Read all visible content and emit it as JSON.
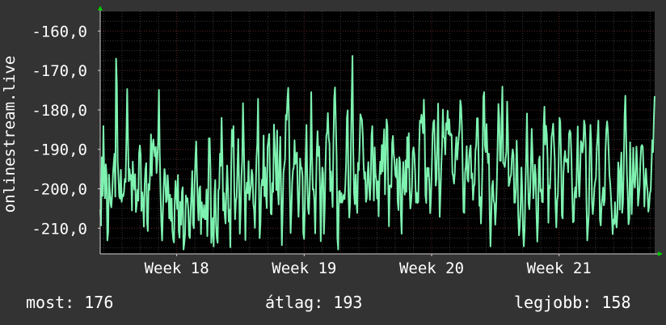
{
  "chart_data": {
    "type": "line",
    "ylabel": "onlinestream.live",
    "ylim": [
      -216.5,
      -155.0
    ],
    "y_ticks": [
      -160,
      -170,
      -180,
      -190,
      -200,
      -210
    ],
    "y_tick_labels": [
      "-160,0",
      "-170,0",
      "-180,0",
      "-190,0",
      "-200,0",
      "-210,0"
    ],
    "x_tick_labels": [
      "Week 18",
      "Week 19",
      "Week 20",
      "Week 21"
    ],
    "x_tick_positions": [
      18,
      19,
      20,
      21
    ],
    "xlim": [
      17.4,
      21.75
    ],
    "grid": true,
    "colors": {
      "line": "#7ef2b0",
      "background": "#333333",
      "plot_bg": "#000000",
      "grid_minor": "#3a3a3a",
      "grid_major": "#5a1f1f",
      "axis": "#d0d0d0",
      "arrow": "#00cc00"
    },
    "series": [
      {
        "values": [
          -205.3,
          -209.3,
          -192.0,
          -201.8,
          -184.1,
          -196.6,
          -202.4,
          -193.8,
          -196.4,
          -213.1,
          -211.0,
          -196.4,
          -200.3,
          -203.6,
          -204.7,
          -201.5,
          -196.5,
          -193.6,
          -191.1,
          -202.0,
          -167.0,
          -173.8,
          -193.1,
          -197.3,
          -201.9,
          -202.5,
          -195.2,
          -203.3,
          -201.5,
          -201.9,
          -200.7,
          -197.5,
          -198.3,
          -187.1,
          -174.7,
          -187.4,
          -198.1,
          -195.0,
          -197.7,
          -196.5,
          -205.5,
          -193.1,
          -197.8,
          -200.2,
          -196.3,
          -205.9,
          -204.0,
          -200.3,
          -203.0,
          -191.0,
          -189.0,
          -191.4,
          -205.6,
          -200.9,
          -203.2,
          -209.6,
          -199.0,
          -195.1,
          -193.5,
          -208.2,
          -210.7,
          -198.8,
          -200.3,
          -195.3,
          -186.2,
          -196.7,
          -189.1,
          -187.5,
          -190.0,
          -191.8,
          -189.4,
          -196.0,
          -192.4,
          -187.9,
          -174.9,
          -190.6,
          -200.6,
          -208.5,
          -213.1,
          -205.8,
          -199.7,
          -195.0,
          -196.7,
          -203.4,
          -202.8,
          -196.6,
          -200.0,
          -207.5,
          -201.5,
          -208.1,
          -202.5,
          -210.6,
          -212.8,
          -213.6,
          -203.3,
          -198.0,
          -201.5,
          -205.1,
          -196.5,
          -210.7,
          -212.4,
          -203.3,
          -209.1,
          -200.8,
          -199.6,
          -215.4,
          -213.8,
          -211.4,
          -201.7,
          -203.3,
          -202.4,
          -205.2,
          -211.8,
          -212.5,
          -205.6,
          -201.3,
          -195.5,
          -208.9,
          -210.0,
          -199.0,
          -192.4,
          -188.0,
          -196.9,
          -204.1,
          -208.0,
          -200.0,
          -199.4,
          -211.5,
          -203.4,
          -206.7,
          -207.3,
          -204.1,
          -207.7,
          -207.7,
          -200.2,
          -212.0,
          -204.9,
          -187.2,
          -187.2,
          -195.2,
          -213.7,
          -210.7,
          -207.4,
          -214.6,
          -201.9,
          -197.8,
          -209.1,
          -212.6,
          -213.7,
          -200.3,
          -199.9,
          -191.1,
          -194.2,
          -182.0,
          -191.4,
          -205.5,
          -201.1,
          -206.7,
          -208.8,
          -200.6,
          -194.1,
          -199.7,
          -208.3,
          -205.3,
          -214.8,
          -196.6,
          -185.0,
          -189.2,
          -184.1,
          -200.3,
          -207.7,
          -203.1,
          -202.2,
          -194.7,
          -187.4,
          -198.2,
          -211.4,
          -205.6,
          -197.3,
          -192.8,
          -178.3,
          -188.1,
          -199.9,
          -213.0,
          -201.1,
          -198.4,
          -201.1,
          -193.0,
          -202.8,
          -201.0,
          -199.1,
          -195.2,
          -196.4,
          -203.7,
          -205.4,
          -209.9,
          -200.6,
          -192.1,
          -188.6,
          -177.2,
          -195.5,
          -212.5,
          -208.9,
          -199.9,
          -197.7,
          -199.1,
          -186.5,
          -201.9,
          -194.6,
          -201.7,
          -204.9,
          -189.3,
          -187.9,
          -186.1,
          -196.8,
          -206.2,
          -206.5,
          -198.5,
          -200.8,
          -183.7,
          -188.8,
          -193.4,
          -200.3,
          -185.2,
          -200.6,
          -204.0,
          -192.9,
          -186.8,
          -200.9,
          -214.3,
          -205.6,
          -196.0,
          -194.1,
          -192.5,
          -181.3,
          -182.5,
          -177.5,
          -174.4,
          -182.5,
          -200.5,
          -211.2,
          -205.6,
          -198.4,
          -195.3,
          -194.5,
          -187.7,
          -193.7,
          -191.8,
          -190.8,
          -201.3,
          -207.1,
          -201.5,
          -192.3,
          -194.8,
          -194.7,
          -196.8,
          -211.3,
          -212.7,
          -204.3,
          -192.0,
          -183.8,
          -197.2,
          -204.9,
          -206.4,
          -200.5,
          -193.5,
          -175.5,
          -191.0,
          -200.2,
          -200.1,
          -203.3,
          -211.3,
          -200.8,
          -190.6,
          -185.4,
          -191.7,
          -189.3,
          -199.0,
          -213.3,
          -200.8,
          -194.6,
          -196.2,
          -211.4,
          -205.1,
          -194.1,
          -186.6,
          -185.6,
          -180.8,
          -187.0,
          -188.6,
          -200.6,
          -195.6,
          -199.9,
          -204.6,
          -188.5,
          -176.9,
          -174.3,
          -183.1,
          -191.8,
          -212.6,
          -215.4,
          -200.7,
          -200.5,
          -203.5,
          -201.1,
          -203.5,
          -202.6,
          -201.5,
          -202.6,
          -199.2,
          -193.4,
          -182.1,
          -180.1,
          -201.6,
          -207.3,
          -203.6,
          -190.1,
          -177.3,
          -166.3,
          -190.2,
          -201.2,
          -203.9,
          -196.4,
          -203.2,
          -206.1,
          -193.4,
          -195.3,
          -189.6,
          -181.1,
          -181.9,
          -182.5,
          -186.4,
          -193.8,
          -197.5,
          -195.8,
          -203.3,
          -202.4,
          -196.9,
          -193.2,
          -199.3,
          -202.8,
          -198.4,
          -186.5,
          -184.1,
          -194.6,
          -203.0,
          -189.5,
          -196.1,
          -197.8,
          -202.5,
          -198.1,
          -207.0,
          -197.3,
          -193.1,
          -196.2,
          -188.9,
          -195.6,
          -189.0,
          -184.9,
          -201.4,
          -193.3,
          -182.4,
          -184.1,
          -198.0,
          -209.5,
          -199.2,
          -199.1,
          -199.6,
          -188.4,
          -186.6,
          -191.2,
          -193.0,
          -196.5,
          -197.1,
          -192.4,
          -203.3,
          -205.4,
          -192.0,
          -193.3,
          -206.2,
          -211.4,
          -198.9,
          -193.2,
          -199.6,
          -201.5,
          -192.8,
          -200.8,
          -186.9,
          -194.6,
          -185.9,
          -199.9,
          -205.0,
          -203.1,
          -199.6,
          -190.7,
          -189.5,
          -191.4,
          -195.7,
          -203.5,
          -201.0,
          -203.6,
          -203.3,
          -190.4,
          -182.7,
          -183.3,
          -181.2,
          -182.8,
          -185.9,
          -177.4,
          -184.5,
          -201.6,
          -203.6,
          -194.7,
          -196.8,
          -194.7,
          -199.2,
          -206.2,
          -202.0,
          -194.6,
          -186.2,
          -183.1,
          -182.6,
          -190.6,
          -199.2,
          -197.2,
          -187.6,
          -178.4,
          -196.0,
          -207.1,
          -200.9,
          -194.1,
          -188.8,
          -179.9,
          -186.8,
          -187.2,
          -191.3,
          -183.4,
          -185.0,
          -180.2,
          -186.1,
          -182.4,
          -186.5,
          -186.0,
          -186.4,
          -196.0,
          -196.8,
          -198.7,
          -196.0,
          -190.2,
          -186.9,
          -192.6,
          -189.5,
          -186.8,
          -184.8,
          -177.6,
          -179.2,
          -184.4,
          -195.8,
          -205.9,
          -206.1,
          -196.0,
          -194.1,
          -189.2,
          -197.5,
          -198.2,
          -192.5,
          -190.0,
          -189.0,
          -197.3,
          -196.1,
          -202.8,
          -199.5,
          -198.8,
          -190.5,
          -188.8,
          -182.1,
          -182.1,
          -191.9,
          -204.3,
          -202.1,
          -208.8,
          -202.6,
          -191.8,
          -176.7,
          -175.5,
          -189.1,
          -190.7,
          -183.6,
          -190.3,
          -193.5,
          -191.1,
          -206.3,
          -214.6,
          -206.7,
          -199.4,
          -198.0,
          -203.0,
          -203.8,
          -209.1,
          -205.2,
          -198.5,
          -189.0,
          -178.5,
          -182.2,
          -192.9,
          -192.9,
          -182.6,
          -174.1,
          -193.5,
          -193.7,
          -194.5,
          -192.4,
          -190.7,
          -177.9,
          -185.8,
          -199.3,
          -198.5,
          -197.1,
          -196.5,
          -192.0,
          -190.0,
          -191.4,
          -203.5,
          -203.5,
          -200.0,
          -187.8,
          -194.7,
          -206.9,
          -211.8,
          -209.4,
          -204.3,
          -194.6,
          -200.3,
          -210.4,
          -214.6,
          -210.5,
          -200.6,
          -191.6,
          -180.9,
          -193.7,
          -203.7,
          -205.2,
          -200.6,
          -193.3,
          -184.8,
          -191.3,
          -202.4,
          -198.8,
          -193.9,
          -196.6,
          -206.4,
          -213.4,
          -208.0,
          -192.8,
          -191.8,
          -200.7,
          -200.2,
          -203.3,
          -203.4,
          -184.2,
          -179.2,
          -188.8,
          -184.0,
          -186.2,
          -192.4,
          -208.6,
          -199.2,
          -199.9,
          -193.9,
          -186.8,
          -185.6,
          -183.5,
          -188.2,
          -192.3,
          -204.2,
          -209.8,
          -203.1,
          -201.5,
          -193.0,
          -182.0,
          -183.1,
          -192.0,
          -206.8,
          -207.5,
          -196.0,
          -192.4,
          -190.4,
          -193.1,
          -193.2,
          -192.5,
          -195.8,
          -186.1,
          -185.2,
          -185.9,
          -191.7,
          -200.9,
          -208.5,
          -208.2,
          -201.2,
          -199.6,
          -202.2,
          -192.9,
          -184.2,
          -197.6,
          -202.0,
          -196.2,
          -187.9,
          -188.5,
          -190.8,
          -188.9,
          -182.7,
          -184.0,
          -188.8,
          -203.3,
          -213.1,
          -209.8,
          -206.2,
          -191.5,
          -183.8,
          -188.6,
          -203.5,
          -206.4,
          -203.8,
          -199.8,
          -198.2,
          -197.1,
          -189.6,
          -186.6,
          -182.7,
          -194.3,
          -207.8,
          -209.3,
          -204.2,
          -202.3,
          -199.7,
          -204.2,
          -202.8,
          -190.4,
          -185.2,
          -182.9,
          -185.2,
          -190.7,
          -196.6,
          -198.8,
          -202.6,
          -206.6,
          -211.5,
          -207.8,
          -208.9,
          -203.4,
          -208.3,
          -209.8,
          -206.3,
          -193.3,
          -195.7,
          -205.3,
          -195.3,
          -190.8,
          -206.1,
          -203.6,
          -194.9,
          -181.7,
          -176.4,
          -186.6,
          -196.2,
          -201.3,
          -209.0,
          -207.6,
          -188.2,
          -198.0,
          -206.4,
          -199.5,
          -189.6,
          -197.9,
          -199.7,
          -195.5,
          -189.3,
          -194.2,
          -204.3,
          -202.0,
          -199.3,
          -193.3,
          -189.3,
          -188.9,
          -189.4,
          -195.6,
          -204.5,
          -198.6,
          -194.9,
          -198.8,
          -200.6,
          -205.8,
          -204.3,
          -201.2,
          -200.4,
          -194.2,
          -187.7,
          -190.7,
          -181.9,
          -176.5
        ]
      }
    ]
  },
  "stats": {
    "now": "most: 176",
    "avg": "átlag: 193",
    "best": "legjobb: 158"
  }
}
